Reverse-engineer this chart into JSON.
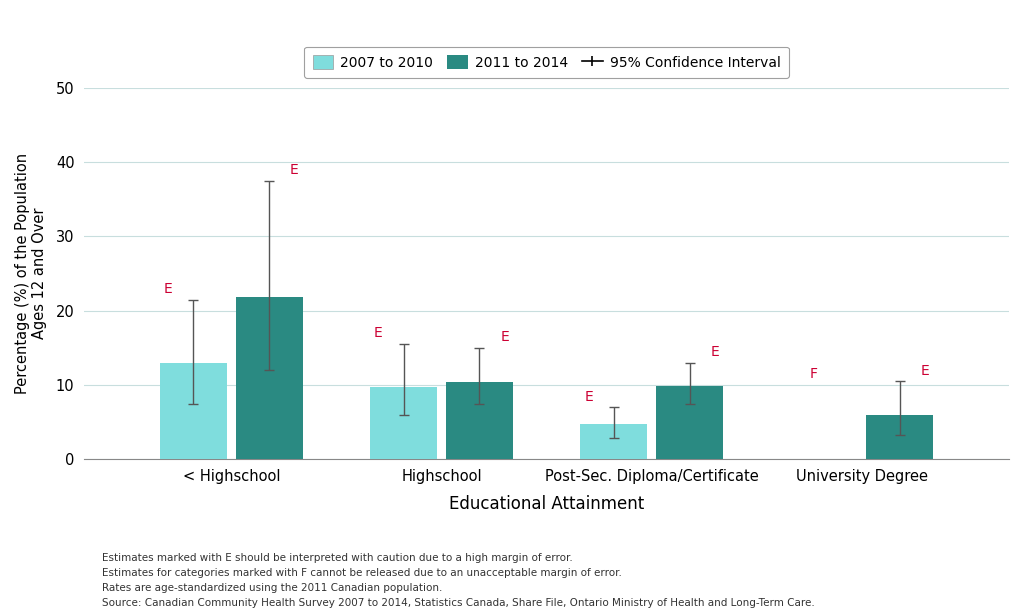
{
  "categories": [
    "< Highschool",
    "Highschool",
    "Post-Sec. Diploma/Certificate",
    "University Degree"
  ],
  "bar_values_2007": [
    13.0,
    9.7,
    4.8,
    null
  ],
  "bar_values_2011": [
    21.8,
    10.4,
    9.9,
    6.0
  ],
  "ci_2007_low": [
    7.5,
    6.0,
    2.8,
    null
  ],
  "ci_2007_high": [
    21.5,
    15.5,
    7.0,
    null
  ],
  "ci_2011_low": [
    12.0,
    7.5,
    7.5,
    3.2
  ],
  "ci_2011_high": [
    37.5,
    15.0,
    13.0,
    10.5
  ],
  "color_2007": "#7FDDDD",
  "color_2011": "#2A8A82",
  "errorbar_color": "#555555",
  "ylabel": "Percentage (%) of the Population\nAges 12 and Over",
  "xlabel": "Educational Attainment",
  "ylim": [
    0,
    50
  ],
  "yticks": [
    0,
    10,
    20,
    30,
    40,
    50
  ],
  "legend_2007": "2007 to 2010",
  "legend_2011": "2011 to 2014",
  "legend_ci": "95% Confidence Interval",
  "e_labels_2007": [
    "E",
    "E",
    "E",
    "F"
  ],
  "e_labels_2011": [
    "E",
    "E",
    "E",
    "E"
  ],
  "e_color": "#CC0033",
  "footnote_lines": [
    "Estimates marked with E should be interpreted with caution due to a high margin of error.",
    "Estimates for categories marked with F cannot be released due to an unacceptable margin of error.",
    "Rates are age-standardized using the 2011 Canadian population.",
    "Source: Canadian Community Health Survey 2007 to 2014, Statistics Canada, Share File, Ontario Ministry of Health and Long-Term Care."
  ],
  "background_color": "#FFFFFF",
  "grid_color": "#C8DEDE"
}
